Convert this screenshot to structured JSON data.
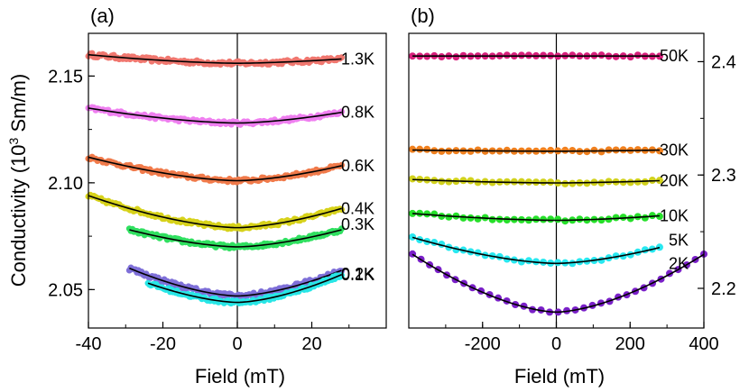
{
  "chart_data": [
    {
      "panel": "(a)",
      "type": "scatter",
      "xlabel": "Field (mT)",
      "ylabel": "Conductivity (10^3 Sm/m)",
      "ylabel_base": "Conductivity (10",
      "ylabel_sup": "3",
      "ylabel_tail": " Sm/m)",
      "xlim": [
        -40,
        40
      ],
      "ylim": [
        2.032,
        2.17
      ],
      "xticks": [
        -40,
        -20,
        0,
        20
      ],
      "xtick_labels": [
        "-40",
        "-20",
        "0",
        "20"
      ],
      "yticks": [
        2.05,
        2.1,
        2.15
      ],
      "ytick_labels": [
        "2.05",
        "2.10",
        "2.15"
      ],
      "vline_x": 0,
      "marker_radius": 3.5,
      "series": [
        {
          "name": "1.3K",
          "color": "#f0776f",
          "label_color": "#ff2020",
          "xmin": -40,
          "xmax": 28,
          "y0": 2.156,
          "y_left": 2.16,
          "y_right": 2.158,
          "noise": 0.0009
        },
        {
          "name": "0.8K",
          "color": "#ef7ff0",
          "label_color": "#ee22ee",
          "xmin": -40,
          "xmax": 28,
          "y0": 2.128,
          "y_left": 2.135,
          "y_right": 2.133,
          "noise": 0.0008
        },
        {
          "name": "0.6K",
          "color": "#f07a4a",
          "label_color": "#ff7a10",
          "xmin": -40,
          "xmax": 28,
          "y0": 2.101,
          "y_left": 2.112,
          "y_right": 2.108,
          "noise": 0.0008
        },
        {
          "name": "0.4K",
          "color": "#d7d21a",
          "label_color": "#dada00",
          "xmin": -40,
          "xmax": 28,
          "y0": 2.079,
          "y_left": 2.094,
          "y_right": 2.088,
          "noise": 0.0008
        },
        {
          "name": "0.3K",
          "color": "#30e060",
          "label_color": "#18d818",
          "xmin": -29,
          "xmax": 28,
          "y0": 2.07,
          "y_left": 2.078,
          "y_right": 2.078,
          "noise": 0.0008
        },
        {
          "name": "0.2K",
          "color": "#7e6fd8",
          "label_color": "#7a10d0",
          "xmin": -29,
          "xmax": 28,
          "y0": 2.047,
          "y_left": 2.06,
          "y_right": 2.059,
          "noise": 0.001
        },
        {
          "name": "0.1K",
          "color": "#28e6e6",
          "label_color": "#10e0f0",
          "xmin": -24,
          "xmax": 28,
          "y0": 2.044,
          "y_left": 2.053,
          "y_right": 2.057,
          "noise": 0.0008
        }
      ]
    },
    {
      "panel": "(b)",
      "type": "scatter",
      "xlabel": "Field (mT)",
      "xlim": [
        -400,
        400
      ],
      "ylim": [
        2.165,
        2.425
      ],
      "xticks": [
        -200,
        0,
        200,
        400
      ],
      "xtick_labels": [
        "-200",
        "0",
        "200",
        "400"
      ],
      "yticks": [
        2.2,
        2.3,
        2.4
      ],
      "ytick_labels": [
        "2.2",
        "2.3",
        "2.4"
      ],
      "y_axis_side": "right",
      "vline_x": 0,
      "marker_radius": 4,
      "series": [
        {
          "name": "50K",
          "color": "#d8207c",
          "label_color": "#e01010",
          "xmin": -390,
          "xmax": 280,
          "y0": 2.405,
          "y_left": 2.405,
          "y_right": 2.405,
          "noise": 0.0008
        },
        {
          "name": "30K",
          "color": "#f0801e",
          "label_color": "#f08018",
          "xmin": -390,
          "xmax": 280,
          "y0": 2.321,
          "y_left": 2.322,
          "y_right": 2.322,
          "noise": 0.0008
        },
        {
          "name": "20K",
          "color": "#d2d21c",
          "label_color": "#d0d000",
          "xmin": -390,
          "xmax": 280,
          "y0": 2.293,
          "y_left": 2.296,
          "y_right": 2.295,
          "noise": 0.0008
        },
        {
          "name": "10K",
          "color": "#26e02a",
          "label_color": "#18d818",
          "xmin": -390,
          "xmax": 280,
          "y0": 2.26,
          "y_left": 2.266,
          "y_right": 2.264,
          "noise": 0.001
        },
        {
          "name": "5K",
          "color": "#28e8f0",
          "label_color": "#10e0f0",
          "xmin": -390,
          "xmax": 280,
          "y0": 2.222,
          "y_left": 2.245,
          "y_right": 2.236,
          "noise": 0.001
        },
        {
          "name": "2K",
          "color": "#7a20c8",
          "label_color": "#7a10d0",
          "xmin": -390,
          "xmax": 400,
          "y0": 2.179,
          "y_left": 2.23,
          "y_right": 2.23,
          "noise": 0.0008
        }
      ]
    }
  ]
}
